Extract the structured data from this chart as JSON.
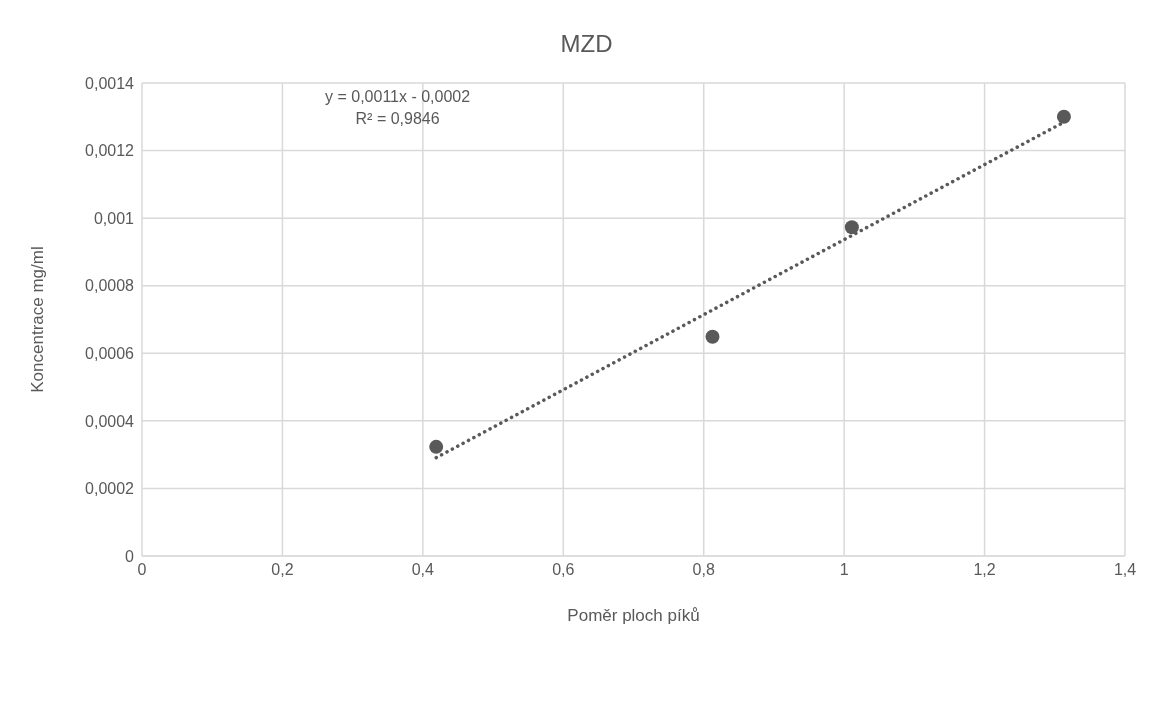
{
  "chart_data": {
    "type": "scatter",
    "title": "MZD",
    "xlabel": "Poměr ploch píků",
    "ylabel": "Koncentrace mg/ml",
    "annotations": [
      "y = 0,0011x - 0,0002",
      "R² = 0,9846"
    ],
    "series": [
      {
        "color": "#595959",
        "marker": "circle",
        "x": [
          0.419,
          0.8125,
          1.011,
          1.313
        ],
        "values": [
          0.000323,
          0.000649,
          0.000973,
          0.0013
        ]
      },
      {
        "type": "line",
        "color": "#595959",
        "line_style": "dotted",
        "marker": "none",
        "x": [
          0.419,
          1.313
        ],
        "values": [
          0.000291,
          0.001284
        ]
      }
    ],
    "xlim": [
      0,
      1.4
    ],
    "xticks": [
      0,
      {
        "value": 0.2,
        "label": "0,2"
      },
      {
        "value": 0.4,
        "label": "0,4"
      },
      {
        "value": 0.6,
        "label": "0,6"
      },
      {
        "value": 0.8,
        "label": "0,8"
      },
      1,
      {
        "value": 1.2,
        "label": "1,2"
      },
      {
        "value": 1.4,
        "label": "1,4"
      }
    ],
    "ylim": [
      0,
      0.0014
    ],
    "yticks": [
      0,
      {
        "value": 0.0002,
        "label": "0,0002"
      },
      {
        "value": 0.0004,
        "label": "0,0004"
      },
      {
        "value": 0.0006,
        "label": "0,0006"
      },
      {
        "value": 0.0008,
        "label": "0,0008"
      },
      {
        "value": 0.001,
        "label": "0,001"
      },
      {
        "value": 0.0012,
        "label": "0,0012"
      },
      {
        "value": 0.0014,
        "label": "0,0014"
      }
    ],
    "grid": true
  }
}
